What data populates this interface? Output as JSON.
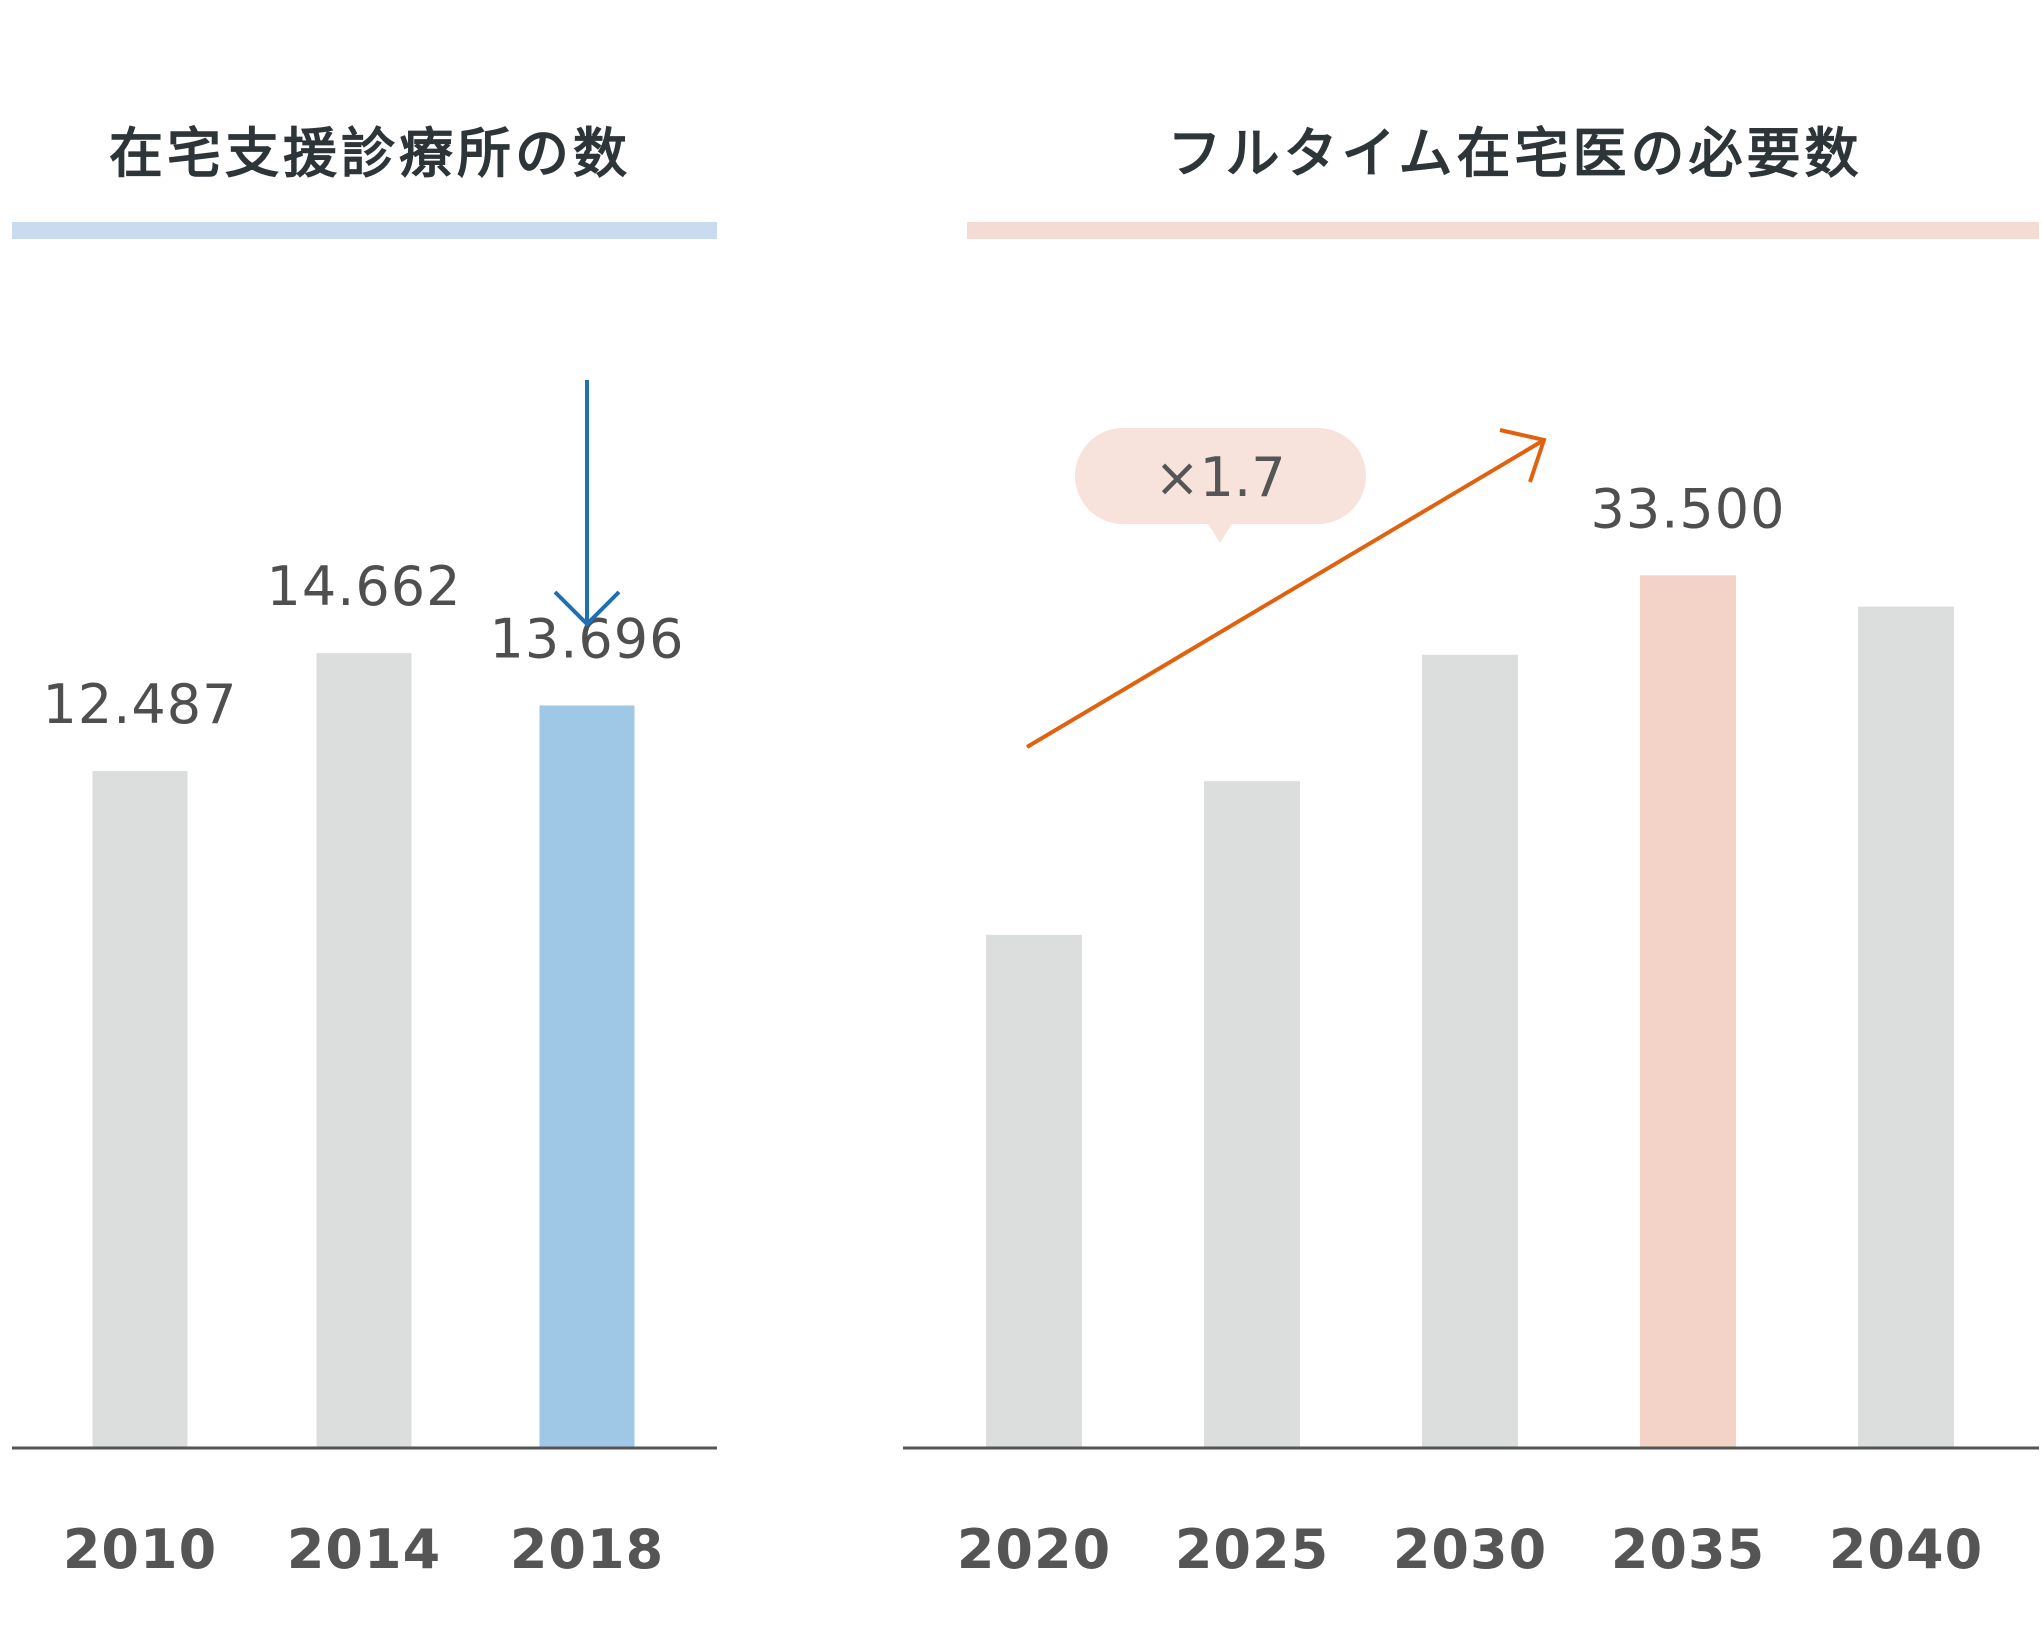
{
  "colors": {
    "bar_default": "#dcdddd",
    "bar_highlight_left": "#9fc7e6",
    "bar_highlight_right": "#f3d2c7",
    "title_rule_left": "#c9dbef",
    "title_rule_right": "#f4dcd4",
    "arrow_left": "#1f6fb5",
    "arrow_right": "#e0620f",
    "bubble": "#f8e2dc",
    "axis": "#555555"
  },
  "chart_data": [
    {
      "type": "bar",
      "title": "在宅支援診療所の数",
      "categories": [
        "2010",
        "2014",
        "2018"
      ],
      "values": [
        12487,
        14662,
        13696
      ],
      "value_labels": [
        "12.487",
        "14.662",
        "13.696"
      ],
      "highlight": "2018",
      "annotation": "down-arrow",
      "ylim": [
        0,
        19700
      ],
      "xlabel": "",
      "ylabel": ""
    },
    {
      "type": "bar",
      "title": "フルタイム在宅医の必要数",
      "categories": [
        "2020",
        "2025",
        "2030",
        "2035",
        "2040"
      ],
      "values": [
        19700,
        25600,
        30450,
        33500,
        32300
      ],
      "value_labels": [
        "",
        "",
        "",
        "33.500",
        ""
      ],
      "highlight": "2035",
      "annotation": "×1.7",
      "ylim": [
        0,
        41000
      ],
      "xlabel": "",
      "ylabel": ""
    }
  ]
}
